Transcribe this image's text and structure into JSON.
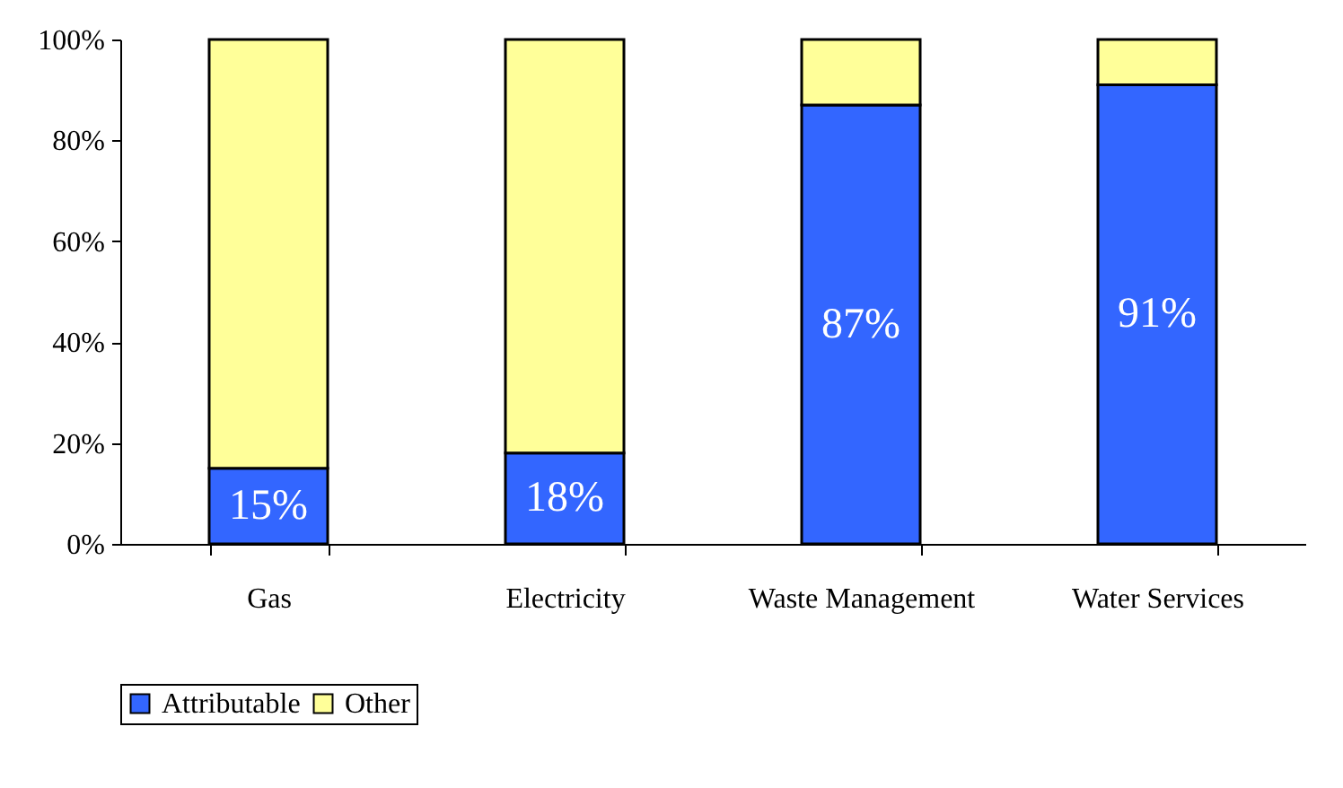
{
  "chart_data": {
    "type": "bar",
    "stacked": true,
    "categories": [
      "Gas",
      "Electricity",
      "Waste Management",
      "Water Services"
    ],
    "series": [
      {
        "name": "Attributable",
        "color": "#3366ff",
        "values": [
          15,
          18,
          87,
          91
        ],
        "value_labels": [
          "15%",
          "18%",
          "87%",
          "91%"
        ]
      },
      {
        "name": "Other",
        "color": "#ffff99",
        "values": [
          85,
          82,
          13,
          9
        ]
      }
    ],
    "ylim": [
      0,
      100
    ],
    "yticks": [
      {
        "value": 0,
        "label": "0%"
      },
      {
        "value": 20,
        "label": "20%"
      },
      {
        "value": 40,
        "label": "40%"
      },
      {
        "value": 60,
        "label": "60%"
      },
      {
        "value": 80,
        "label": "80%"
      },
      {
        "value": 100,
        "label": "100%"
      }
    ],
    "grid": false,
    "legend": "bottom"
  }
}
